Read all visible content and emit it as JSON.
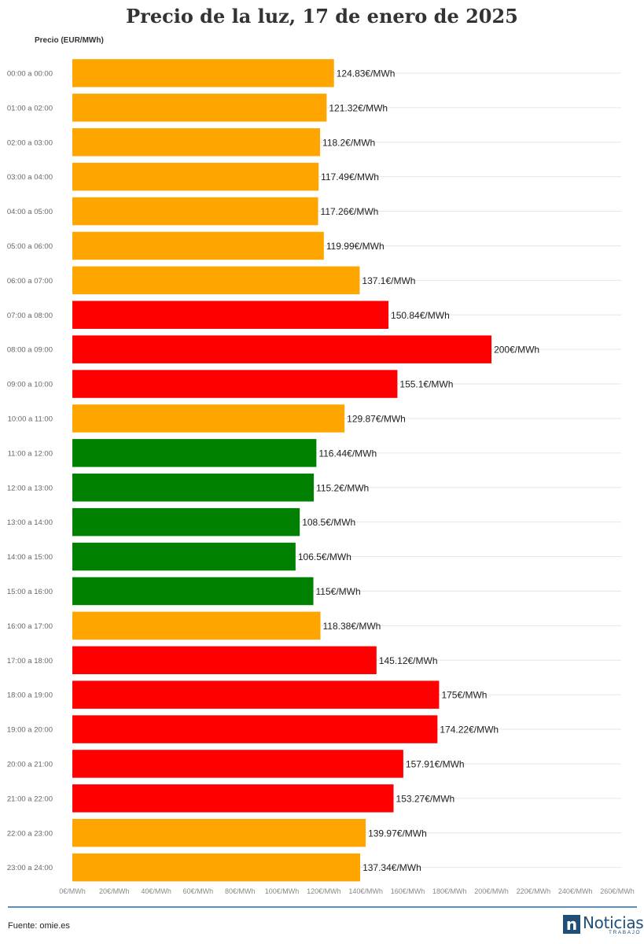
{
  "chart_data": {
    "type": "bar",
    "orientation": "horizontal",
    "title": "Precio de la luz, 17 de enero de 2025",
    "ylabel": "Precio (EUR/MWh)",
    "value_suffix": "€/MWh",
    "xlim": [
      0,
      260
    ],
    "x_ticks": [
      "0€/MWh",
      "20€/MWh",
      "40€/MWh",
      "60€/MWh",
      "80€/MWh",
      "100€/MWh",
      "120€/MWh",
      "140€/MWh",
      "160€/MWh",
      "180€/MWh",
      "200€/MWh",
      "220€/MWh",
      "240€/MWh",
      "260€/MWh"
    ],
    "x_tick_values": [
      0,
      20,
      40,
      60,
      80,
      100,
      120,
      140,
      160,
      180,
      200,
      220,
      240,
      260
    ],
    "grid": true,
    "categories": [
      "00:00 a 00:00",
      "01:00 a 02:00",
      "02:00 a 03:00",
      "03:00 a 04:00",
      "04:00 a 05:00",
      "05:00 a 06:00",
      "06:00 a 07:00",
      "07:00 a 08:00",
      "08:00 a 09:00",
      "09:00 a 10:00",
      "10:00 a 11:00",
      "11:00 a 12:00",
      "12:00 a 13:00",
      "13:00 a 14:00",
      "14:00 a 15:00",
      "15:00 a 16:00",
      "16:00 a 17:00",
      "17:00 a 18:00",
      "18:00 a 19:00",
      "19:00 a 20:00",
      "20:00 a 21:00",
      "21:00 a 22:00",
      "22:00 a 23:00",
      "23:00 a 24:00"
    ],
    "values": [
      124.83,
      121.32,
      118.2,
      117.49,
      117.26,
      119.99,
      137.1,
      150.84,
      200,
      155.1,
      129.87,
      116.44,
      115.2,
      108.5,
      106.5,
      115,
      118.38,
      145.12,
      175,
      174.22,
      157.91,
      153.27,
      139.97,
      137.34
    ],
    "value_labels": [
      "124.83€/MWh",
      "121.32€/MWh",
      "118.2€/MWh",
      "117.49€/MWh",
      "117.26€/MWh",
      "119.99€/MWh",
      "137.1€/MWh",
      "150.84€/MWh",
      "200€/MWh",
      "155.1€/MWh",
      "129.87€/MWh",
      "116.44€/MWh",
      "115.2€/MWh",
      "108.5€/MWh",
      "106.5€/MWh",
      "115€/MWh",
      "118.38€/MWh",
      "145.12€/MWh",
      "175€/MWh",
      "174.22€/MWh",
      "157.91€/MWh",
      "153.27€/MWh",
      "139.97€/MWh",
      "137.34€/MWh"
    ],
    "bar_colors": [
      "#FFA500",
      "#FFA500",
      "#FFA500",
      "#FFA500",
      "#FFA500",
      "#FFA500",
      "#FFA500",
      "#FF0000",
      "#FF0000",
      "#FF0000",
      "#FFA500",
      "#008000",
      "#008000",
      "#008000",
      "#008000",
      "#008000",
      "#FFA500",
      "#FF0000",
      "#FF0000",
      "#FF0000",
      "#FF0000",
      "#FF0000",
      "#FFA500",
      "#FFA500"
    ]
  },
  "colors": {
    "high": "#FF0000",
    "medium": "#FFA500",
    "low": "#008000",
    "divider": "#5b8db8",
    "brand": "#1f4e79"
  },
  "footer": {
    "source": "Fuente: omie.es",
    "logo_letter": "n",
    "logo_main": "Noticias",
    "logo_sub": "TRABAJO"
  }
}
